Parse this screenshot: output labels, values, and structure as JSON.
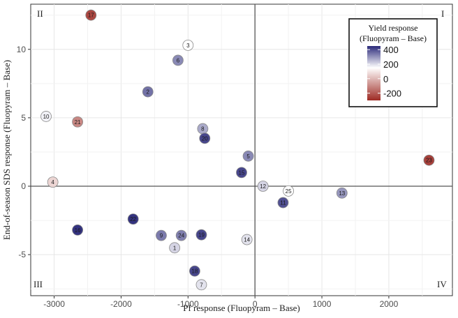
{
  "chart_data": {
    "type": "scatter",
    "xlabel": "Pf response (Fluopyram – Base)",
    "ylabel": "End-of-season SDS response (Fluopyram – Base)",
    "xlim": [
      -3350,
      2950
    ],
    "ylim": [
      -8.0,
      13.3
    ],
    "x_ticks": [
      -3000,
      -2000,
      -1000,
      0,
      1000,
      2000
    ],
    "y_ticks": [
      -5,
      0,
      5,
      10
    ],
    "grid": true,
    "quadrant_labels": {
      "q1": "I",
      "q2": "II",
      "q3": "III",
      "q4": "IV"
    },
    "legend": {
      "title_line1": "Yield response",
      "title_line2": "(Fluopyram – Base)",
      "ticks": [
        "400",
        "200",
        "0",
        "-200"
      ],
      "tick_values": [
        400,
        200,
        0,
        -200
      ],
      "range": [
        -300,
        450
      ],
      "position": "top-right"
    },
    "colors": {
      "high": "#2b2a7a",
      "mid": "#ffffff",
      "low": "#9e2b24"
    },
    "points": [
      {
        "label": "1",
        "x": -1200,
        "y": -4.5,
        "yield": 90
      },
      {
        "label": "2",
        "x": -1600,
        "y": 6.9,
        "yield": 300
      },
      {
        "label": "3",
        "x": -1000,
        "y": 10.3,
        "yield": 0
      },
      {
        "label": "4",
        "x": -3020,
        "y": 0.3,
        "yield": -60
      },
      {
        "label": "5",
        "x": -100,
        "y": 2.2,
        "yield": 250
      },
      {
        "label": "6",
        "x": -1150,
        "y": 9.2,
        "yield": 250
      },
      {
        "label": "7",
        "x": -800,
        "y": -7.2,
        "yield": 60
      },
      {
        "label": "8",
        "x": -780,
        "y": 4.2,
        "yield": 180
      },
      {
        "label": "9",
        "x": -1400,
        "y": -3.6,
        "yield": 280
      },
      {
        "label": "10",
        "x": -3120,
        "y": 5.1,
        "yield": 30
      },
      {
        "label": "11",
        "x": 420,
        "y": -1.2,
        "yield": 370
      },
      {
        "label": "12",
        "x": 120,
        "y": 0.0,
        "yield": 90
      },
      {
        "label": "13",
        "x": 1300,
        "y": -0.5,
        "yield": 220
      },
      {
        "label": "14",
        "x": -120,
        "y": -3.9,
        "yield": 60
      },
      {
        "label": "16",
        "x": -2650,
        "y": -3.2,
        "yield": 430
      },
      {
        "label": "17",
        "x": -2450,
        "y": 12.5,
        "yield": -260
      },
      {
        "label": "18",
        "x": -900,
        "y": -6.2,
        "yield": 390
      },
      {
        "label": "19",
        "x": -800,
        "y": -3.55,
        "yield": 390
      },
      {
        "label": "20",
        "x": -750,
        "y": 3.5,
        "yield": 390
      },
      {
        "label": "21",
        "x": -2650,
        "y": 4.7,
        "yield": -170
      },
      {
        "label": "22",
        "x": -1820,
        "y": -2.4,
        "yield": 430
      },
      {
        "label": "23",
        "x": 2600,
        "y": 1.9,
        "yield": -270
      },
      {
        "label": "24",
        "x": -1100,
        "y": -3.6,
        "yield": 270
      },
      {
        "label": "25",
        "x": 500,
        "y": -0.35,
        "yield": 0
      },
      {
        "label": "15",
        "x": -200,
        "y": 1.0,
        "yield": 390
      }
    ]
  }
}
